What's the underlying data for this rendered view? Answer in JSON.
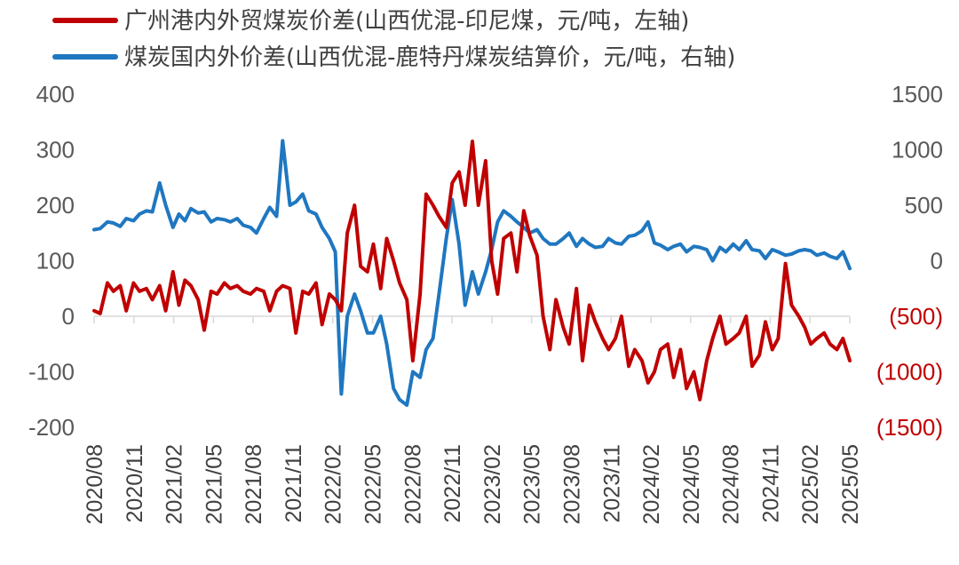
{
  "chart_data": {
    "type": "line",
    "title": "",
    "xlabel": "",
    "ylabel": "",
    "x_ticks": [
      "2020/08",
      "2020/11",
      "2021/02",
      "2021/05",
      "2021/08",
      "2021/11",
      "2022/02",
      "2022/05",
      "2022/08",
      "2022/11",
      "2023/02",
      "2023/05",
      "2023/08",
      "2023/11",
      "2024/02",
      "2024/05",
      "2024/08",
      "2024/11",
      "2025/02",
      "2025/05"
    ],
    "x_range": [
      "2020-08-01",
      "2025-05-31"
    ],
    "y_left": {
      "ylim": [
        -200,
        400
      ],
      "ticks": [
        "400",
        "300",
        "200",
        "100",
        "0",
        "-100",
        "-200"
      ]
    },
    "y_right": {
      "ylim": [
        -1500,
        1500
      ],
      "ticks": [
        "1500",
        "1000",
        "500",
        "0",
        "(500)",
        "(1000)",
        "(1500)"
      ],
      "negative_color": "#c00000",
      "positive_color": "#595959"
    },
    "legend_position": "top-left",
    "grid": false,
    "series": [
      {
        "name": "广州港内外贸煤炭价差(山西优混-印尼煤，元/吨，左轴)",
        "color": "#c00000",
        "axis": "left",
        "x": [
          "2020-08-01",
          "2020-08-15",
          "2020-09-01",
          "2020-09-15",
          "2020-10-01",
          "2020-10-15",
          "2020-11-01",
          "2020-11-15",
          "2020-12-01",
          "2020-12-15",
          "2021-01-01",
          "2021-01-15",
          "2021-02-01",
          "2021-02-15",
          "2021-03-01",
          "2021-03-15",
          "2021-04-01",
          "2021-04-15",
          "2021-05-01",
          "2021-05-15",
          "2021-06-01",
          "2021-06-15",
          "2021-07-01",
          "2021-07-15",
          "2021-08-01",
          "2021-08-15",
          "2021-09-01",
          "2021-09-15",
          "2021-10-01",
          "2021-10-15",
          "2021-11-01",
          "2021-11-15",
          "2021-12-01",
          "2021-12-15",
          "2022-01-01",
          "2022-01-15",
          "2022-02-01",
          "2022-02-15",
          "2022-03-01",
          "2022-03-15",
          "2022-04-01",
          "2022-04-15",
          "2022-05-01",
          "2022-05-15",
          "2022-06-01",
          "2022-06-15",
          "2022-07-01",
          "2022-07-15",
          "2022-08-01",
          "2022-08-15",
          "2022-09-01",
          "2022-09-15",
          "2022-10-01",
          "2022-10-15",
          "2022-11-01",
          "2022-11-15",
          "2022-12-01",
          "2022-12-15",
          "2023-01-01",
          "2023-01-15",
          "2023-02-01",
          "2023-02-15",
          "2023-03-01",
          "2023-03-15",
          "2023-04-01",
          "2023-04-15",
          "2023-05-01",
          "2023-05-15",
          "2023-06-01",
          "2023-06-15",
          "2023-07-01",
          "2023-07-15",
          "2023-08-01",
          "2023-08-15",
          "2023-09-01",
          "2023-09-15",
          "2023-10-01",
          "2023-10-15",
          "2023-11-01",
          "2023-11-15",
          "2023-12-01",
          "2023-12-15",
          "2024-01-01",
          "2024-01-15",
          "2024-02-01",
          "2024-02-15",
          "2024-03-01",
          "2024-03-15",
          "2024-04-01",
          "2024-04-15",
          "2024-05-01",
          "2024-05-15",
          "2024-06-01",
          "2024-06-15",
          "2024-07-01",
          "2024-07-15",
          "2024-08-01",
          "2024-08-15",
          "2024-09-01",
          "2024-09-15",
          "2024-10-01",
          "2024-10-15",
          "2024-11-01",
          "2024-11-15",
          "2024-12-01",
          "2024-12-15",
          "2025-01-01",
          "2025-01-15",
          "2025-02-01",
          "2025-02-15",
          "2025-03-01",
          "2025-03-15",
          "2025-04-01",
          "2025-04-15",
          "2025-05-01",
          "2025-05-15",
          "2025-05-31"
        ],
        "values": [
          10,
          5,
          60,
          45,
          55,
          10,
          60,
          45,
          50,
          30,
          55,
          10,
          80,
          20,
          65,
          55,
          30,
          -25,
          45,
          40,
          60,
          50,
          55,
          45,
          40,
          50,
          45,
          10,
          45,
          55,
          50,
          -30,
          45,
          40,
          60,
          -15,
          40,
          30,
          10,
          150,
          200,
          90,
          80,
          130,
          50,
          140,
          100,
          60,
          30,
          -80,
          40,
          220,
          200,
          180,
          160,
          240,
          260,
          200,
          315,
          200,
          280,
          100,
          40,
          140,
          150,
          80,
          190,
          145,
          110,
          0,
          -60,
          30,
          -20,
          -50,
          50,
          -80,
          20,
          -10,
          -40,
          -60,
          -40,
          0,
          -90,
          -60,
          -80,
          -120,
          -100,
          -60,
          -50,
          -110,
          -60,
          -130,
          -100,
          -150,
          -80,
          -40,
          0,
          -50,
          -40,
          -30,
          0,
          -90,
          -70,
          -10,
          -60,
          -40,
          95,
          20,
          0,
          -20,
          -50,
          -40,
          -30,
          -50,
          -60,
          -40,
          -80
        ]
      },
      {
        "name": "煤炭国内外价差(山西优混-鹿特丹煤炭结算价，元/吨，右轴)",
        "color": "#1f77c0",
        "axis": "right",
        "x": [
          "2020-08-01",
          "2020-08-15",
          "2020-09-01",
          "2020-09-15",
          "2020-10-01",
          "2020-10-15",
          "2020-11-01",
          "2020-11-15",
          "2020-12-01",
          "2020-12-15",
          "2021-01-01",
          "2021-01-15",
          "2021-02-01",
          "2021-02-15",
          "2021-03-01",
          "2021-03-15",
          "2021-04-01",
          "2021-04-15",
          "2021-05-01",
          "2021-05-15",
          "2021-06-01",
          "2021-06-15",
          "2021-07-01",
          "2021-07-15",
          "2021-08-01",
          "2021-08-15",
          "2021-09-01",
          "2021-09-15",
          "2021-10-01",
          "2021-10-15",
          "2021-11-01",
          "2021-11-15",
          "2021-12-01",
          "2021-12-15",
          "2022-01-01",
          "2022-01-15",
          "2022-02-01",
          "2022-02-15",
          "2022-03-01",
          "2022-03-15",
          "2022-04-01",
          "2022-04-15",
          "2022-05-01",
          "2022-05-15",
          "2022-06-01",
          "2022-06-15",
          "2022-07-01",
          "2022-07-15",
          "2022-08-01",
          "2022-08-15",
          "2022-09-01",
          "2022-09-15",
          "2022-10-01",
          "2022-10-15",
          "2022-11-01",
          "2022-11-15",
          "2022-12-01",
          "2022-12-15",
          "2023-01-01",
          "2023-01-15",
          "2023-02-01",
          "2023-02-15",
          "2023-03-01",
          "2023-03-15",
          "2023-04-01",
          "2023-04-15",
          "2023-05-01",
          "2023-05-15",
          "2023-06-01",
          "2023-06-15",
          "2023-07-01",
          "2023-07-15",
          "2023-08-01",
          "2023-08-15",
          "2023-09-01",
          "2023-09-15",
          "2023-10-01",
          "2023-10-15",
          "2023-11-01",
          "2023-11-15",
          "2023-12-01",
          "2023-12-15",
          "2024-01-01",
          "2024-01-15",
          "2024-02-01",
          "2024-02-15",
          "2024-03-01",
          "2024-03-15",
          "2024-04-01",
          "2024-04-15",
          "2024-05-01",
          "2024-05-15",
          "2024-06-01",
          "2024-06-15",
          "2024-07-01",
          "2024-07-15",
          "2024-08-01",
          "2024-08-15",
          "2024-09-01",
          "2024-09-15",
          "2024-10-01",
          "2024-10-15",
          "2024-11-01",
          "2024-11-15",
          "2024-12-01",
          "2024-12-15",
          "2025-01-01",
          "2025-01-15",
          "2025-02-01",
          "2025-02-15",
          "2025-03-01",
          "2025-03-15",
          "2025-04-01",
          "2025-04-15",
          "2025-05-01",
          "2025-05-15",
          "2025-05-31"
        ],
        "values": [
          280,
          290,
          350,
          340,
          310,
          380,
          360,
          420,
          450,
          440,
          700,
          500,
          300,
          420,
          360,
          470,
          430,
          440,
          350,
          380,
          370,
          350,
          380,
          320,
          300,
          250,
          380,
          480,
          400,
          1080,
          500,
          530,
          600,
          450,
          420,
          300,
          200,
          80,
          -1200,
          -500,
          -300,
          -450,
          -650,
          -650,
          -500,
          -750,
          -1150,
          -1250,
          -1300,
          -1000,
          -1050,
          -800,
          -700,
          -300,
          200,
          550,
          150,
          -400,
          -100,
          -300,
          -100,
          100,
          350,
          450,
          400,
          350,
          300,
          250,
          280,
          200,
          150,
          150,
          200,
          250,
          130,
          200,
          150,
          120,
          130,
          200,
          160,
          150,
          220,
          230,
          270,
          350,
          160,
          140,
          100,
          130,
          150,
          80,
          130,
          120,
          100,
          0,
          120,
          80,
          150,
          100,
          180,
          100,
          90,
          20,
          100,
          80,
          50,
          60,
          90,
          100,
          90,
          50,
          70,
          40,
          20,
          80,
          -70
        ]
      }
    ]
  }
}
